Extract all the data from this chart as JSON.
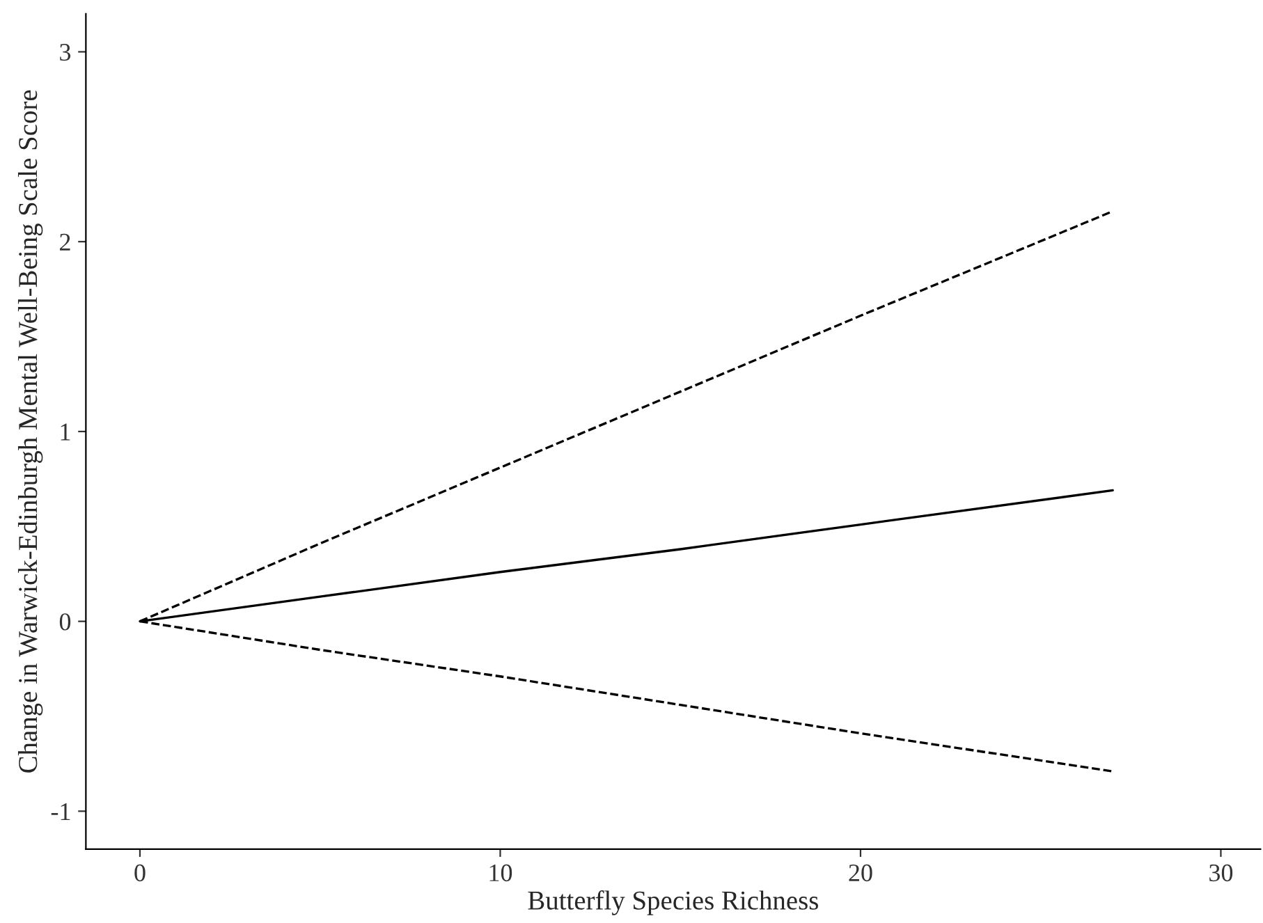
{
  "chart_data": {
    "type": "line",
    "xlabel": "Butterfly Species Richness",
    "ylabel": "Change in Warwick-Edinburgh Mental Well-Being Scale Score",
    "x": [
      0,
      5,
      10,
      15,
      20,
      27
    ],
    "series": [
      {
        "color": "#000000",
        "line_style": "dashed",
        "values": [
          0,
          0.41,
          0.81,
          1.21,
          1.61,
          2.16
        ]
      },
      {
        "color": "#000000",
        "line_style": "solid",
        "values": [
          0,
          0.13,
          0.26,
          0.38,
          0.51,
          0.69
        ]
      },
      {
        "color": "#000000",
        "line_style": "dashed",
        "values": [
          0,
          -0.15,
          -0.29,
          -0.44,
          -0.59,
          -0.79
        ]
      }
    ],
    "xlim": [
      -1.5,
      31.1
    ],
    "xticks": [
      0,
      10,
      20,
      30
    ],
    "ylim": [
      -1.2,
      3.2
    ],
    "yticks": [
      -1,
      0,
      1,
      2,
      3
    ],
    "grid": false,
    "legend": false
  }
}
